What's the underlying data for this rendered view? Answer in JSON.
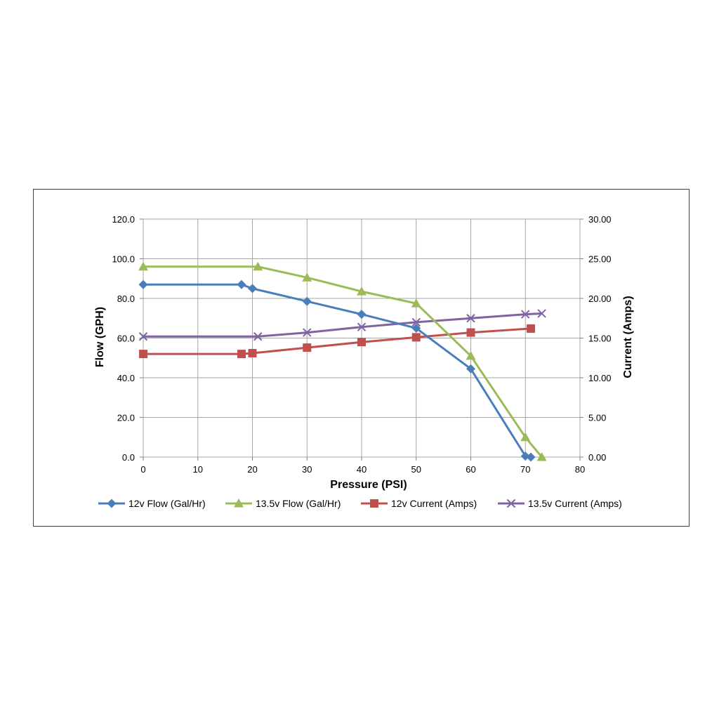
{
  "chart_data": {
    "type": "line",
    "xlabel": "Pressure (PSI)",
    "ylabel": "Flow (GPH)",
    "y2label": "Current (Amps)",
    "xlim": [
      0,
      80
    ],
    "ylim": [
      0,
      120
    ],
    "y2lim": [
      0,
      30
    ],
    "x_ticks": [
      "0",
      "10",
      "20",
      "30",
      "40",
      "50",
      "60",
      "70",
      "80"
    ],
    "y_ticks": [
      "0.0",
      "20.0",
      "40.0",
      "60.0",
      "80.0",
      "100.0",
      "120.0"
    ],
    "y2_ticks": [
      "0.00",
      "5.00",
      "10.00",
      "15.00",
      "20.00",
      "25.00",
      "30.00"
    ],
    "grid": true,
    "legend_position": "bottom",
    "series": [
      {
        "name": "12v Flow (Gal/Hr)",
        "axis": "left",
        "color": "#4a7ebb",
        "marker": "diamond",
        "points": [
          [
            0,
            87
          ],
          [
            18,
            87
          ],
          [
            20,
            85
          ],
          [
            30,
            78.5
          ],
          [
            40,
            72
          ],
          [
            50,
            65
          ],
          [
            60,
            44.5
          ],
          [
            70,
            0.5
          ],
          [
            71,
            0
          ]
        ]
      },
      {
        "name": "13.5v Flow (Gal/Hr)",
        "axis": "left",
        "color": "#9bbb59",
        "marker": "triangle",
        "points": [
          [
            0,
            96
          ],
          [
            21,
            96
          ],
          [
            30,
            90.5
          ],
          [
            40,
            83.5
          ],
          [
            50,
            77.5
          ],
          [
            60,
            51
          ],
          [
            70,
            10
          ],
          [
            73,
            0
          ]
        ]
      },
      {
        "name": "12v Current (Amps)",
        "axis": "right",
        "color": "#c0504d",
        "marker": "square",
        "points": [
          [
            0,
            13
          ],
          [
            18,
            13
          ],
          [
            20,
            13.1
          ],
          [
            30,
            13.8
          ],
          [
            40,
            14.5
          ],
          [
            50,
            15.1
          ],
          [
            60,
            15.7
          ],
          [
            71,
            16.2
          ]
        ]
      },
      {
        "name": "13.5v Current (Amps)",
        "axis": "right",
        "color": "#8064a2",
        "marker": "x",
        "points": [
          [
            0,
            15.2
          ],
          [
            21,
            15.2
          ],
          [
            30,
            15.7
          ],
          [
            40,
            16.4
          ],
          [
            50,
            17
          ],
          [
            60,
            17.5
          ],
          [
            70,
            18
          ],
          [
            73,
            18.1
          ]
        ]
      }
    ]
  }
}
